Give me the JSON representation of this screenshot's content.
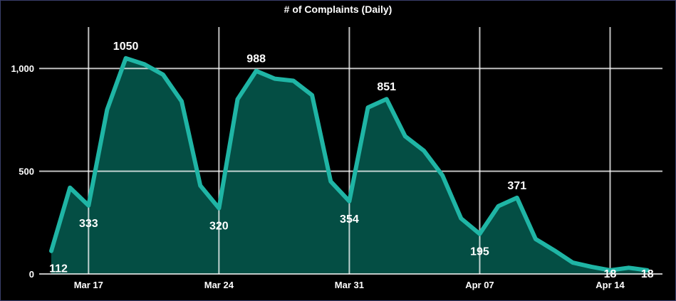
{
  "chart_data": {
    "type": "area",
    "title": "# of Complaints (Daily)",
    "xlabel": "",
    "ylabel": "",
    "x": [
      "2020-03-15",
      "2020-03-16",
      "2020-03-17",
      "2020-03-18",
      "2020-03-19",
      "2020-03-20",
      "2020-03-21",
      "2020-03-22",
      "2020-03-23",
      "2020-03-24",
      "2020-03-25",
      "2020-03-26",
      "2020-03-27",
      "2020-03-28",
      "2020-03-29",
      "2020-03-30",
      "2020-03-31",
      "2020-04-01",
      "2020-04-02",
      "2020-04-03",
      "2020-04-04",
      "2020-04-05",
      "2020-04-06",
      "2020-04-07",
      "2020-04-08",
      "2020-04-09",
      "2020-04-10",
      "2020-04-11",
      "2020-04-12",
      "2020-04-13",
      "2020-04-14",
      "2020-04-15",
      "2020-04-16"
    ],
    "series": [
      {
        "values": [
          112,
          420,
          333,
          800,
          1050,
          1020,
          970,
          840,
          430,
          320,
          850,
          988,
          950,
          940,
          870,
          450,
          354,
          810,
          851,
          670,
          600,
          480,
          270,
          195,
          330,
          371,
          170,
          115,
          55,
          35,
          18,
          30,
          18
        ]
      }
    ],
    "ylim": [
      0,
      1200
    ],
    "yticks": [
      0,
      500,
      1000
    ],
    "ytick_labels": [
      "0",
      "500",
      "1,000"
    ],
    "xticks": [
      "2020-03-17",
      "2020-03-24",
      "2020-03-31",
      "2020-04-07",
      "2020-04-14"
    ],
    "xtick_labels": [
      "Mar 17",
      "Mar 24",
      "Mar 31",
      "Apr 07",
      "Apr 14"
    ],
    "annotations": [
      {
        "x": "2020-03-15",
        "text": "112"
      },
      {
        "x": "2020-03-17",
        "text": "333"
      },
      {
        "x": "2020-03-19",
        "text": "1050"
      },
      {
        "x": "2020-03-24",
        "text": "320"
      },
      {
        "x": "2020-03-26",
        "text": "988"
      },
      {
        "x": "2020-03-31",
        "text": "354"
      },
      {
        "x": "2020-04-02",
        "text": "851"
      },
      {
        "x": "2020-04-07",
        "text": "195"
      },
      {
        "x": "2020-04-09",
        "text": "371"
      },
      {
        "x": "2020-04-14",
        "text": "18"
      },
      {
        "x": "2020-04-16",
        "text": "18"
      }
    ],
    "grid": true,
    "colors": {
      "line": "#1fb5a5",
      "fill": "#044e44",
      "grid": "#ffffff",
      "background": "#000000"
    }
  }
}
